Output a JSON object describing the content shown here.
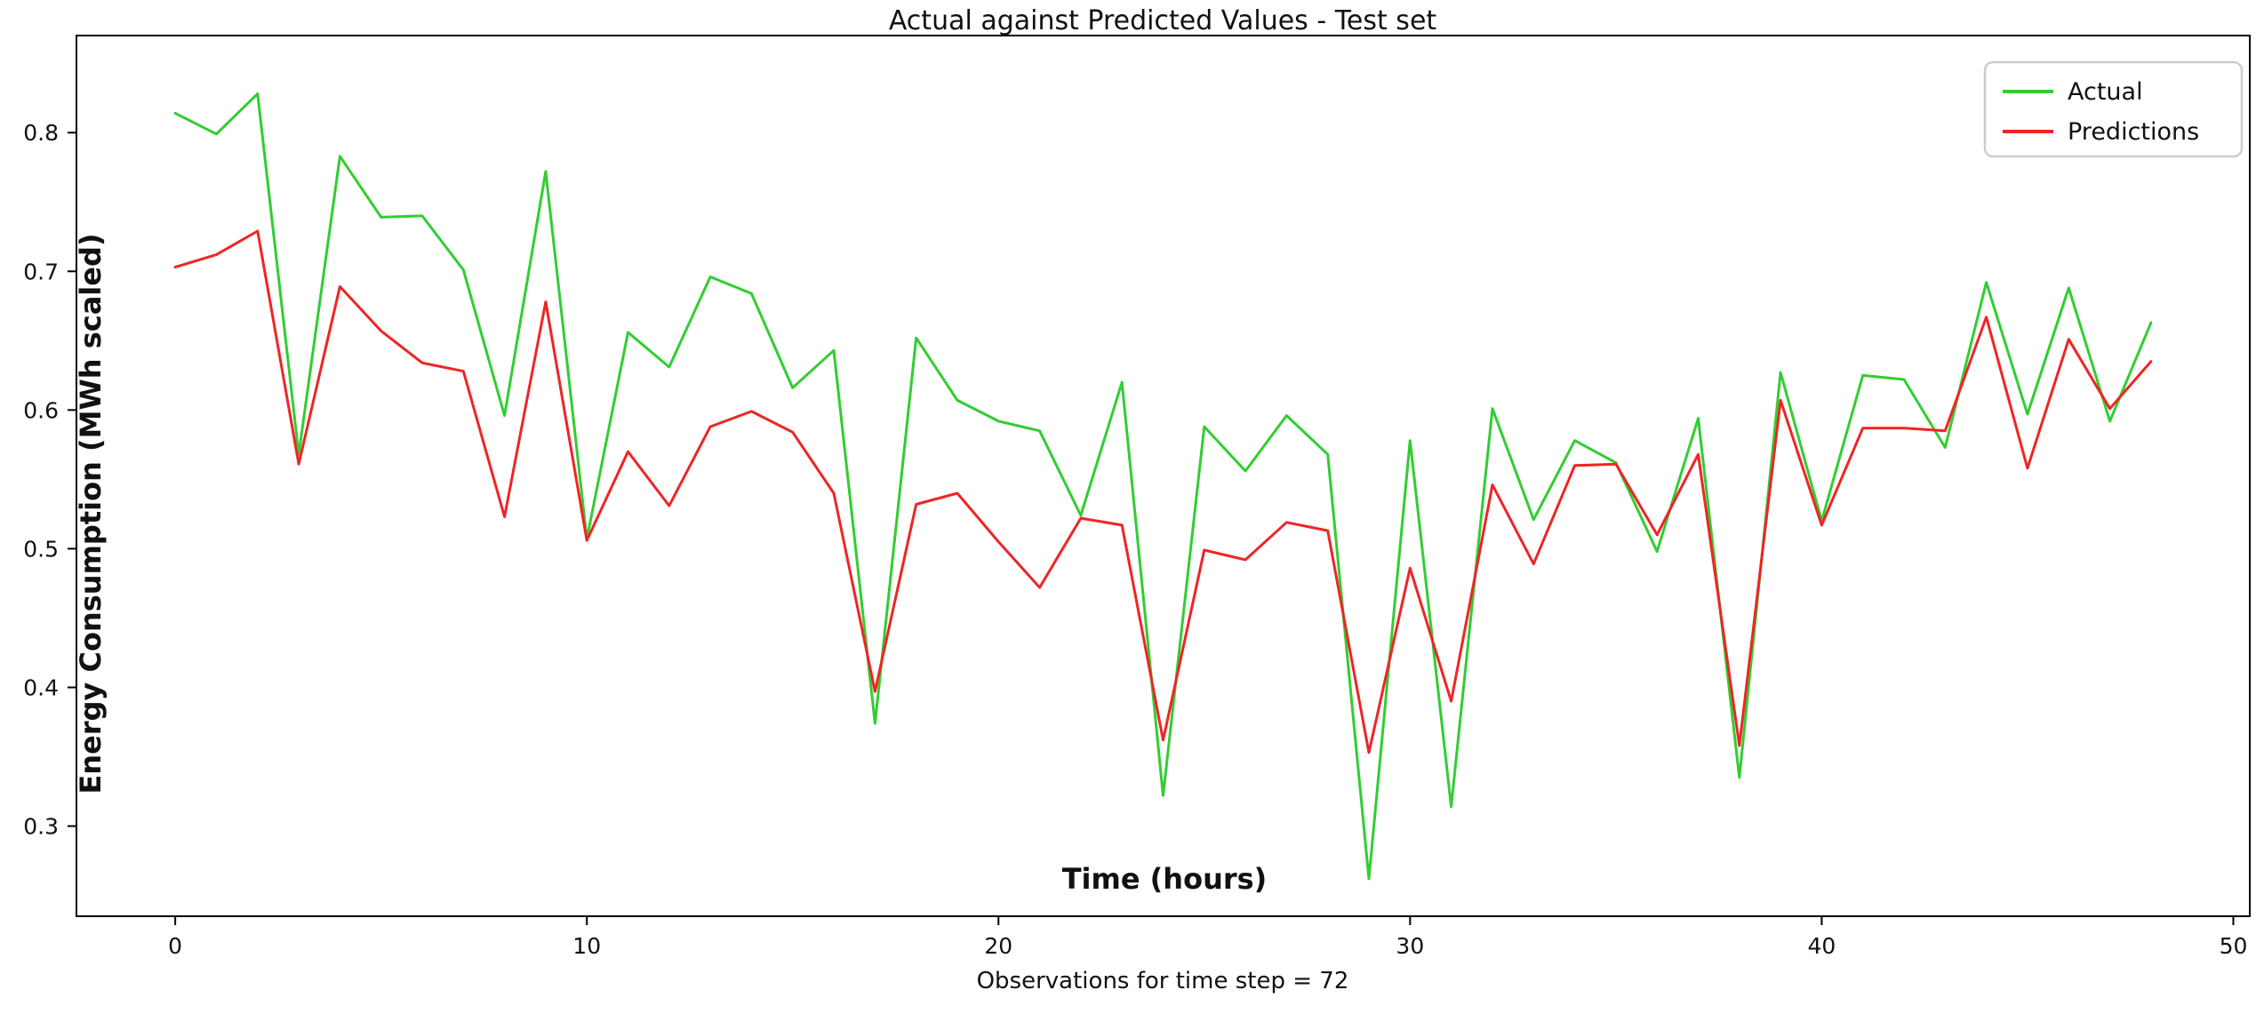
{
  "title": "Actual against Predicted Values - Test set",
  "chart_data": {
    "type": "line",
    "title": "Actual against Predicted Values - Test set",
    "xlabel": "Observations for time step = 72",
    "ylabel": "Energy Consumption (MWh scaled)",
    "inner_xlabel": "Time (hours)",
    "x": [
      0,
      1,
      2,
      3,
      4,
      5,
      6,
      7,
      8,
      9,
      10,
      11,
      12,
      13,
      14,
      15,
      16,
      17,
      18,
      19,
      20,
      21,
      22,
      23,
      24,
      25,
      26,
      27,
      28,
      29,
      30,
      31,
      32,
      33,
      34,
      35,
      36,
      37,
      38,
      39,
      40,
      41,
      42,
      43,
      44,
      45,
      46,
      47,
      48
    ],
    "series": [
      {
        "name": "Actual",
        "color": "#32cd32",
        "values": [
          0.814,
          0.799,
          0.828,
          0.568,
          0.783,
          0.739,
          0.74,
          0.701,
          0.596,
          0.772,
          0.507,
          0.656,
          0.631,
          0.696,
          0.684,
          0.616,
          0.643,
          0.374,
          0.652,
          0.607,
          0.592,
          0.585,
          0.524,
          0.62,
          0.322,
          0.588,
          0.556,
          0.596,
          0.568,
          0.262,
          0.578,
          0.314,
          0.601,
          0.521,
          0.578,
          0.562,
          0.498,
          0.594,
          0.335,
          0.627,
          0.52,
          0.625,
          0.622,
          0.573,
          0.692,
          0.597,
          0.688,
          0.592,
          0.663
        ]
      },
      {
        "name": "Predictions",
        "color": "#ee2525",
        "values": [
          0.703,
          0.712,
          0.729,
          0.561,
          0.689,
          0.657,
          0.634,
          0.628,
          0.523,
          0.678,
          0.506,
          0.57,
          0.531,
          0.588,
          0.599,
          0.584,
          0.54,
          0.397,
          0.532,
          0.54,
          0.505,
          0.472,
          0.522,
          0.517,
          0.362,
          0.499,
          0.492,
          0.519,
          0.513,
          0.353,
          0.486,
          0.39,
          0.546,
          0.489,
          0.56,
          0.561,
          0.51,
          0.568,
          0.358,
          0.607,
          0.517,
          0.587,
          0.587,
          0.585,
          0.667,
          0.558,
          0.651,
          0.601,
          0.635
        ]
      }
    ],
    "x_ticks": [
      0,
      10,
      20,
      30,
      40,
      50
    ],
    "y_ticks": [
      0.3,
      0.4,
      0.5,
      0.6,
      0.7,
      0.8
    ],
    "xlim": [
      -2.4,
      50.4
    ],
    "ylim": [
      0.235,
      0.87
    ],
    "grid": false,
    "legend": {
      "position": "upper right"
    }
  }
}
